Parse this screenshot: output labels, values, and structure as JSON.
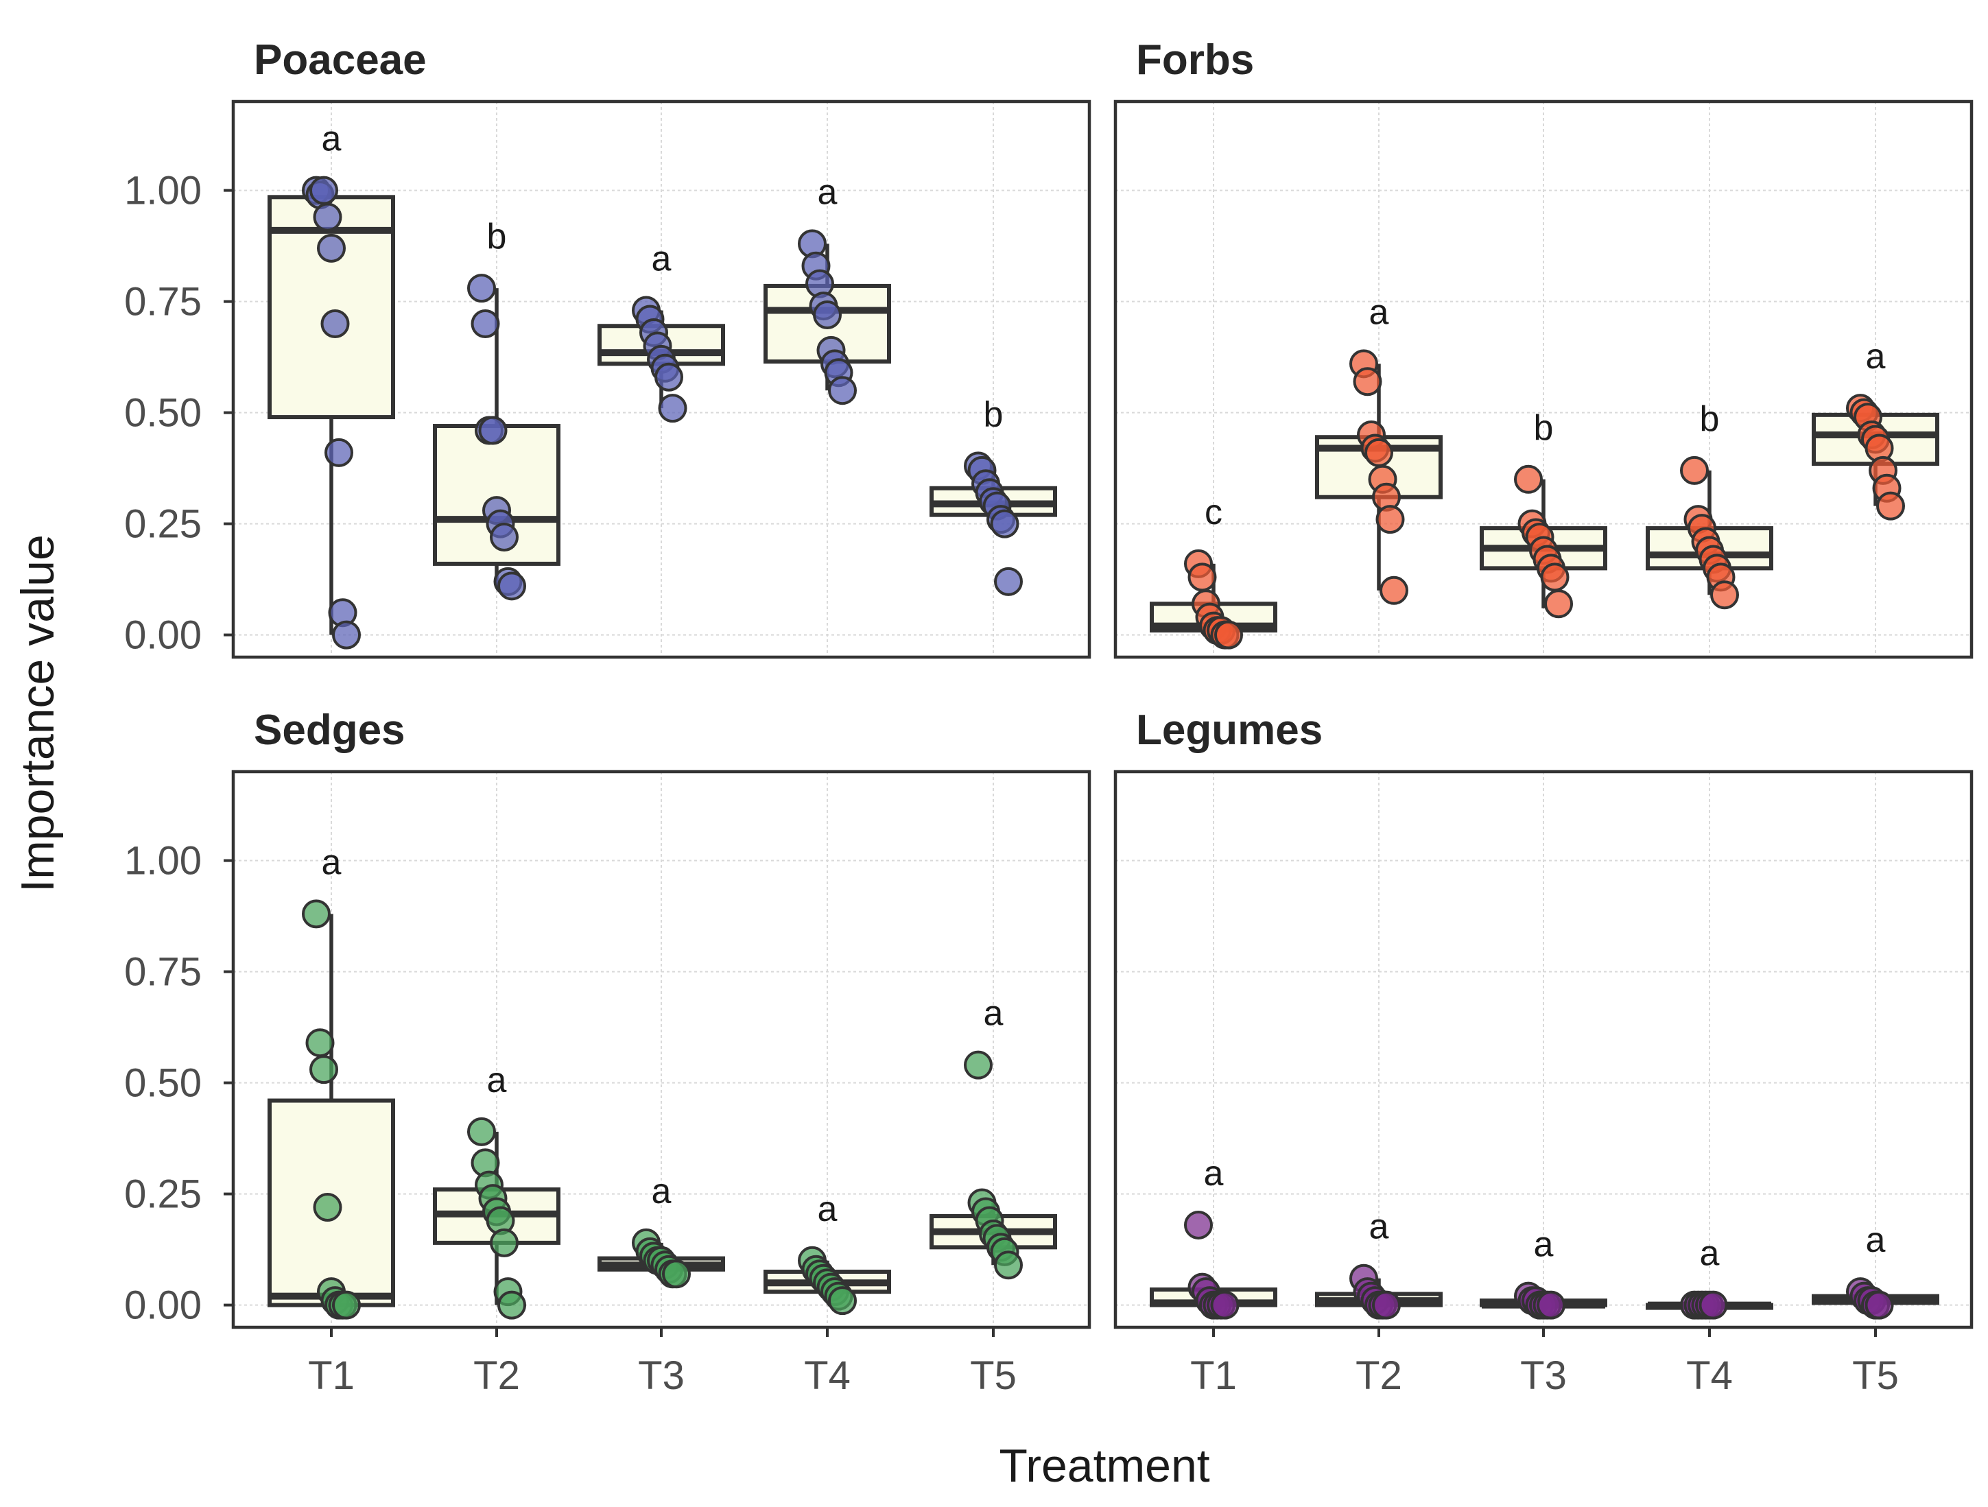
{
  "chart_data": {
    "type": "box",
    "xlabel": "Treatment",
    "ylabel": "Importance value",
    "categories": [
      "T1",
      "T2",
      "T3",
      "T4",
      "T5"
    ],
    "ylim": [
      -0.05,
      1.2
    ],
    "yticks": [
      0.0,
      0.25,
      0.5,
      0.75,
      1.0
    ],
    "ytick_labels": [
      "0.00",
      "0.25",
      "0.50",
      "0.75",
      "1.00"
    ],
    "grid": true,
    "panels": [
      {
        "title": "Poaceae",
        "color": "#5b63b5",
        "letters": [
          "a",
          "b",
          "a",
          "a",
          "b"
        ],
        "boxes": [
          {
            "min": 0.0,
            "q1": 0.49,
            "median": 0.91,
            "q3": 0.985,
            "max": 1.0
          },
          {
            "min": 0.11,
            "q1": 0.16,
            "median": 0.26,
            "q3": 0.47,
            "max": 0.78
          },
          {
            "min": 0.51,
            "q1": 0.61,
            "median": 0.635,
            "q3": 0.695,
            "max": 0.73
          },
          {
            "min": 0.55,
            "q1": 0.615,
            "median": 0.73,
            "q3": 0.785,
            "max": 0.88
          },
          {
            "min": 0.26,
            "q1": 0.27,
            "median": 0.295,
            "q3": 0.33,
            "max": 0.38
          }
        ],
        "points": [
          [
            1.0,
            0.99,
            1.0,
            0.94,
            0.87,
            0.7,
            0.41,
            0.05,
            0.0
          ],
          [
            0.78,
            0.7,
            0.46,
            0.46,
            0.28,
            0.25,
            0.22,
            0.12,
            0.11
          ],
          [
            0.73,
            0.71,
            0.68,
            0.65,
            0.62,
            0.6,
            0.58,
            0.51
          ],
          [
            0.88,
            0.83,
            0.79,
            0.74,
            0.72,
            0.64,
            0.61,
            0.59,
            0.55
          ],
          [
            0.38,
            0.37,
            0.34,
            0.32,
            0.3,
            0.29,
            0.26,
            0.25,
            0.12
          ]
        ]
      },
      {
        "title": "Forbs",
        "color": "#f05a35",
        "letters": [
          "c",
          "a",
          "b",
          "b",
          "a"
        ],
        "boxes": [
          {
            "min": 0.0,
            "q1": 0.01,
            "median": 0.02,
            "q3": 0.07,
            "max": 0.16
          },
          {
            "min": 0.1,
            "q1": 0.31,
            "median": 0.42,
            "q3": 0.445,
            "max": 0.61
          },
          {
            "min": 0.06,
            "q1": 0.15,
            "median": 0.195,
            "q3": 0.24,
            "max": 0.35
          },
          {
            "min": 0.09,
            "q1": 0.15,
            "median": 0.18,
            "q3": 0.24,
            "max": 0.37
          },
          {
            "min": 0.29,
            "q1": 0.385,
            "median": 0.45,
            "q3": 0.495,
            "max": 0.51
          }
        ],
        "points": [
          [
            0.16,
            0.13,
            0.07,
            0.04,
            0.02,
            0.01,
            0.01,
            0.0,
            0.0
          ],
          [
            0.61,
            0.57,
            0.45,
            0.42,
            0.41,
            0.35,
            0.31,
            0.26,
            0.1
          ],
          [
            0.35,
            0.25,
            0.23,
            0.22,
            0.19,
            0.17,
            0.15,
            0.13,
            0.07
          ],
          [
            0.37,
            0.26,
            0.24,
            0.21,
            0.19,
            0.17,
            0.15,
            0.13,
            0.09
          ],
          [
            0.51,
            0.5,
            0.49,
            0.45,
            0.44,
            0.42,
            0.37,
            0.33,
            0.29
          ]
        ]
      },
      {
        "title": "Sedges",
        "color": "#4aa45c",
        "letters": [
          "a",
          "a",
          "a",
          "a",
          "a"
        ],
        "boxes": [
          {
            "min": 0.0,
            "q1": 0.0,
            "median": 0.02,
            "q3": 0.46,
            "max": 0.88
          },
          {
            "min": 0.0,
            "q1": 0.14,
            "median": 0.205,
            "q3": 0.26,
            "max": 0.39
          },
          {
            "min": 0.07,
            "q1": 0.08,
            "median": 0.09,
            "q3": 0.105,
            "max": 0.14
          },
          {
            "min": 0.01,
            "q1": 0.03,
            "median": 0.05,
            "q3": 0.075,
            "max": 0.1
          },
          {
            "min": 0.09,
            "q1": 0.13,
            "median": 0.165,
            "q3": 0.2,
            "max": 0.23
          }
        ],
        "points": [
          [
            0.88,
            0.59,
            0.53,
            0.22,
            0.03,
            0.01,
            0.0,
            0.0,
            0.0
          ],
          [
            0.39,
            0.32,
            0.27,
            0.24,
            0.21,
            0.19,
            0.14,
            0.03,
            0.0
          ],
          [
            0.14,
            0.12,
            0.11,
            0.1,
            0.1,
            0.09,
            0.08,
            0.07,
            0.07
          ],
          [
            0.1,
            0.08,
            0.07,
            0.06,
            0.05,
            0.04,
            0.03,
            0.02,
            0.01
          ],
          [
            0.54,
            0.23,
            0.21,
            0.19,
            0.16,
            0.15,
            0.13,
            0.12,
            0.09
          ]
        ]
      },
      {
        "title": "Legumes",
        "color": "#7b2c8e",
        "letters": [
          "a",
          "a",
          "a",
          "a",
          "a"
        ],
        "boxes": [
          {
            "min": 0.0,
            "q1": 0.0,
            "median": 0.005,
            "q3": 0.035,
            "max": 0.04
          },
          {
            "min": 0.0,
            "q1": 0.0,
            "median": 0.01,
            "q3": 0.025,
            "max": 0.06
          },
          {
            "min": 0.0,
            "q1": 0.0,
            "median": 0.0,
            "q3": 0.01,
            "max": 0.02
          },
          {
            "min": 0.0,
            "q1": 0.0,
            "median": 0.0,
            "q3": 0.0,
            "max": 0.0
          },
          {
            "min": 0.0,
            "q1": 0.005,
            "median": 0.01,
            "q3": 0.02,
            "max": 0.025
          }
        ],
        "points": [
          [
            0.18,
            0.04,
            0.03,
            0.01,
            0.0,
            0.0,
            0.0,
            0.0
          ],
          [
            0.06,
            0.03,
            0.02,
            0.01,
            0.0,
            0.0,
            0.0
          ],
          [
            0.02,
            0.01,
            0.01,
            0.0,
            0.0,
            0.0,
            0.0
          ],
          [
            0.0,
            0.0,
            0.0,
            0.0,
            0.0,
            0.0
          ],
          [
            0.03,
            0.02,
            0.01,
            0.01,
            0.0,
            0.0
          ]
        ]
      }
    ]
  }
}
